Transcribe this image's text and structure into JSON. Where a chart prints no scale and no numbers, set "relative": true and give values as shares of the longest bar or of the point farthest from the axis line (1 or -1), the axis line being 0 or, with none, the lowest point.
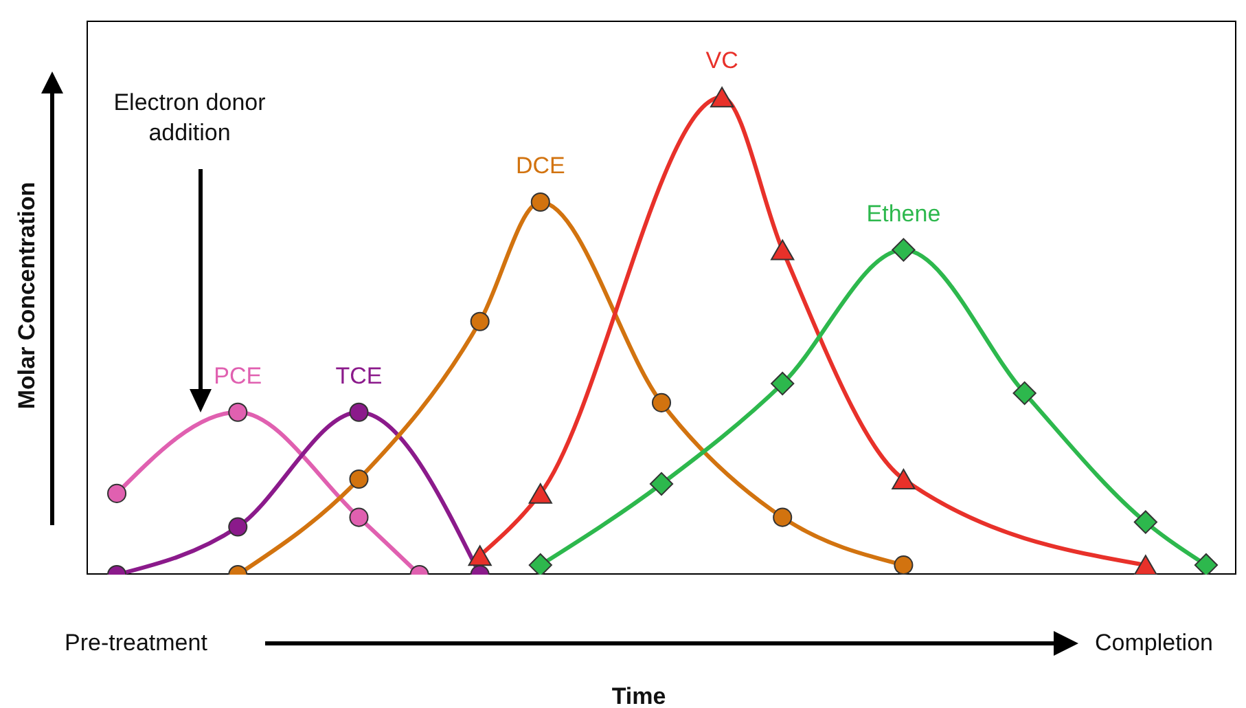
{
  "chart_data": {
    "type": "line",
    "relative": true,
    "xlabel": "Time",
    "ylabel": "Molar Concentration",
    "annotations": [
      "Electron donor addition",
      "Pre-treatment",
      "Completion"
    ],
    "categories": [
      null,
      null,
      null,
      null,
      null,
      null,
      null,
      null,
      null,
      null,
      null,
      null,
      null,
      null,
      null,
      null,
      null,
      null,
      null
    ],
    "series": [
      {
        "name": "PCE",
        "color": "#e060b0",
        "marker": "circle",
        "values": [
          0.17,
          null,
          0.34,
          null,
          0.12,
          0,
          null,
          null,
          null,
          null,
          null,
          null,
          null,
          null,
          null,
          null,
          null,
          null,
          null
        ]
      },
      {
        "name": "TCE",
        "color": "#8b1a8b",
        "marker": "circle",
        "values": [
          0,
          null,
          0.1,
          null,
          0.34,
          null,
          0,
          null,
          null,
          null,
          null,
          null,
          null,
          null,
          null,
          null,
          null,
          null,
          null
        ]
      },
      {
        "name": "DCE",
        "color": "#d2730f",
        "marker": "circle",
        "values": [
          null,
          null,
          0,
          null,
          0.2,
          null,
          0.53,
          0.78,
          null,
          0.36,
          null,
          0.12,
          null,
          0.02,
          null,
          null,
          null,
          null,
          null
        ]
      },
      {
        "name": "VC",
        "color": "#e8312a",
        "marker": "triangle",
        "values": [
          null,
          null,
          null,
          null,
          null,
          null,
          0.04,
          0.17,
          null,
          null,
          1,
          0.68,
          null,
          0.2,
          null,
          null,
          null,
          0.02,
          null
        ]
      },
      {
        "name": "Ethene",
        "color": "#2db84d",
        "marker": "diamond",
        "values": [
          null,
          null,
          null,
          null,
          null,
          null,
          null,
          0.02,
          null,
          0.19,
          null,
          0.4,
          null,
          0.68,
          null,
          0.38,
          null,
          0.11,
          0.02
        ]
      }
    ]
  }
}
